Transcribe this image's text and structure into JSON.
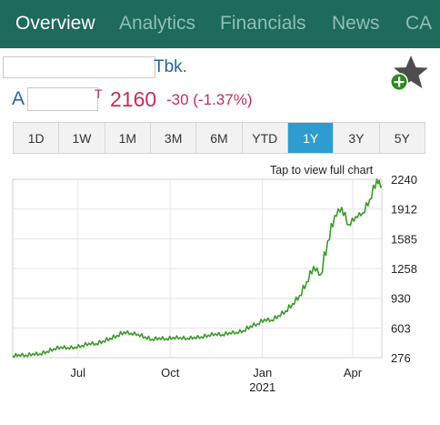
{
  "tabs": [
    {
      "label": "Overview",
      "active": true
    },
    {
      "label": "Analytics",
      "active": false
    },
    {
      "label": "Financials",
      "active": false
    },
    {
      "label": "News",
      "active": false
    },
    {
      "label": "CA",
      "active": false
    }
  ],
  "stock": {
    "name_suffix": "Tbk.",
    "ticker_prefix": "A",
    "ticker_suffix": "T",
    "price": "2160",
    "change": "-30 (-1.37%)"
  },
  "watchlist": {
    "icon": "star-add-icon"
  },
  "ranges": [
    "1D",
    "1W",
    "1M",
    "3M",
    "6M",
    "YTD",
    "1Y",
    "3Y",
    "5Y"
  ],
  "active_range": "1Y",
  "chart_link": "Tap to view full chart",
  "colors": {
    "tabbar": "#1e6a5b",
    "tab_inactive": "#8fbfb3",
    "price_down": "#c62e55",
    "name": "#2a63a6",
    "line": "#3a9a2a",
    "range_active": "#2f9ccf"
  },
  "chart_data": {
    "type": "line",
    "y_ticks": [
      "2240",
      "1912",
      "1585",
      "1258",
      "930",
      "603",
      "276"
    ],
    "ylim": [
      276,
      2240
    ],
    "x_ticks": [
      {
        "label": "Jul",
        "date": "2020-07-01"
      },
      {
        "label": "Oct",
        "date": "2020-10-01"
      },
      {
        "label": "Jan",
        "sublabel": "2021",
        "date": "2021-01-01"
      },
      {
        "label": "Apr",
        "date": "2021-04-01"
      }
    ],
    "x_range": [
      "2020-04-27",
      "2021-04-30"
    ],
    "grid": true,
    "series": [
      {
        "points": [
          [
            "2020-04-27",
            296
          ],
          [
            "2020-05-03",
            310
          ],
          [
            "2020-05-10",
            302
          ],
          [
            "2020-05-17",
            320
          ],
          [
            "2020-05-24",
            318
          ],
          [
            "2020-05-31",
            345
          ],
          [
            "2020-06-07",
            375
          ],
          [
            "2020-06-14",
            395
          ],
          [
            "2020-06-21",
            386
          ],
          [
            "2020-06-28",
            392
          ],
          [
            "2020-07-05",
            410
          ],
          [
            "2020-07-12",
            435
          ],
          [
            "2020-07-19",
            430
          ],
          [
            "2020-07-26",
            460
          ],
          [
            "2020-08-02",
            490
          ],
          [
            "2020-08-09",
            520
          ],
          [
            "2020-08-16",
            560
          ],
          [
            "2020-08-23",
            545
          ],
          [
            "2020-08-30",
            535
          ],
          [
            "2020-09-06",
            505
          ],
          [
            "2020-09-13",
            478
          ],
          [
            "2020-09-20",
            495
          ],
          [
            "2020-09-27",
            485
          ],
          [
            "2020-10-04",
            500
          ],
          [
            "2020-10-11",
            498
          ],
          [
            "2020-10-18",
            490
          ],
          [
            "2020-10-25",
            500
          ],
          [
            "2020-11-01",
            505
          ],
          [
            "2020-11-08",
            525
          ],
          [
            "2020-11-15",
            540
          ],
          [
            "2020-11-22",
            530
          ],
          [
            "2020-11-29",
            552
          ],
          [
            "2020-12-06",
            555
          ],
          [
            "2020-12-13",
            575
          ],
          [
            "2020-12-20",
            625
          ],
          [
            "2020-12-27",
            650
          ],
          [
            "2021-01-03",
            700
          ],
          [
            "2021-01-10",
            690
          ],
          [
            "2021-01-17",
            740
          ],
          [
            "2021-01-24",
            790
          ],
          [
            "2021-01-31",
            870
          ],
          [
            "2021-02-07",
            960
          ],
          [
            "2021-02-14",
            1110
          ],
          [
            "2021-02-21",
            1280
          ],
          [
            "2021-02-28",
            1190
          ],
          [
            "2021-03-07",
            1560
          ],
          [
            "2021-03-14",
            1840
          ],
          [
            "2021-03-21",
            1930
          ],
          [
            "2021-03-28",
            1740
          ],
          [
            "2021-04-04",
            1830
          ],
          [
            "2021-04-11",
            1870
          ],
          [
            "2021-04-18",
            2020
          ],
          [
            "2021-04-25",
            2240
          ],
          [
            "2021-04-30",
            2160
          ]
        ]
      }
    ]
  }
}
